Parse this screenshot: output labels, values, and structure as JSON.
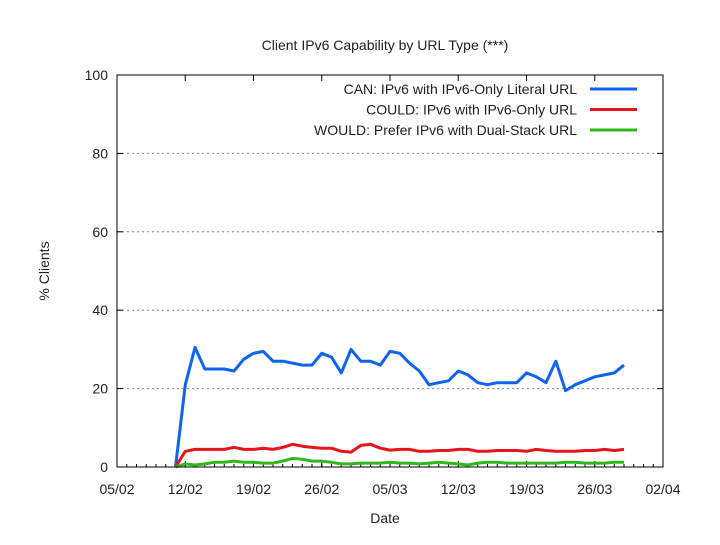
{
  "chart_data": {
    "type": "line",
    "title": "Client IPv6 Capability by URL Type (***)",
    "xlabel": "Date",
    "ylabel": "% Clients",
    "ylim": [
      0,
      100
    ],
    "yticks": [
      "0",
      "20",
      "40",
      "60",
      "80",
      "100"
    ],
    "xticks": [
      "05/02",
      "12/02",
      "19/02",
      "26/02",
      "05/03",
      "12/03",
      "19/03",
      "26/03",
      "02/04"
    ],
    "grid": "horizontal dotted",
    "legend": "top-right",
    "x": [
      "11/02",
      "12/02",
      "13/02",
      "14/02",
      "15/02",
      "16/02",
      "17/02",
      "18/02",
      "19/02",
      "20/02",
      "21/02",
      "22/02",
      "23/02",
      "24/02",
      "25/02",
      "26/02",
      "27/02",
      "28/02",
      "01/03",
      "02/03",
      "03/03",
      "04/03",
      "05/03",
      "06/03",
      "07/03",
      "08/03",
      "09/03",
      "10/03",
      "11/03",
      "12/03",
      "13/03",
      "14/03",
      "15/03",
      "16/03",
      "17/03",
      "18/03",
      "19/03",
      "20/03",
      "21/03",
      "22/03",
      "23/03",
      "24/03",
      "25/03",
      "26/03",
      "27/03",
      "28/03",
      "29/03"
    ],
    "series": [
      {
        "name": "CAN: IPv6 with IPv6-Only Literal URL",
        "color": "#0e63f0",
        "values": [
          0,
          21,
          30.5,
          25,
          25,
          25,
          24.5,
          27.5,
          29,
          29.5,
          27,
          27,
          26.5,
          26,
          26,
          29,
          28,
          24,
          30,
          27,
          27,
          26,
          29.5,
          29,
          26.5,
          24.5,
          21,
          21.5,
          22,
          24.5,
          23.5,
          21.5,
          21,
          21.5,
          21.5,
          21.5,
          24,
          23,
          21.5,
          27,
          19.5,
          21,
          22,
          23,
          23.5,
          24,
          26
        ]
      },
      {
        "name": "COULD: IPv6 with IPv6-Only URL",
        "color": "#e8141c",
        "values": [
          0,
          4,
          4.5,
          4.5,
          4.5,
          4.5,
          5,
          4.5,
          4.5,
          4.8,
          4.5,
          5,
          5.8,
          5.3,
          5,
          4.8,
          4.8,
          4,
          3.8,
          5.5,
          5.8,
          4.8,
          4.3,
          4.5,
          4.5,
          4,
          4,
          4.2,
          4.2,
          4.5,
          4.5,
          4,
          4,
          4.2,
          4.2,
          4.2,
          4,
          4.5,
          4.2,
          4,
          4,
          4,
          4.2,
          4.2,
          4.5,
          4.2,
          4.5
        ]
      },
      {
        "name": "WOULD: Prefer IPv6 with Dual-Stack URL",
        "color": "#2eb81c",
        "values": [
          0,
          0.8,
          0.5,
          0.8,
          1.2,
          1.2,
          1.5,
          1.2,
          1.2,
          1,
          1,
          1.5,
          2.2,
          2,
          1.5,
          1.5,
          1.2,
          0.8,
          0.8,
          1,
          1,
          1,
          1.2,
          1,
          1,
          0.8,
          1,
          1.2,
          1,
          0.8,
          0.5,
          1,
          1.2,
          1.2,
          1,
          1,
          1,
          1,
          1,
          1,
          1.2,
          1.2,
          1,
          1,
          1,
          1.2,
          1.2
        ]
      }
    ]
  }
}
